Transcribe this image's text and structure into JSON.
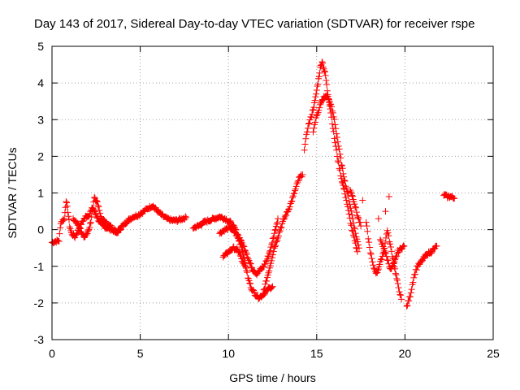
{
  "chart_data": {
    "type": "scatter",
    "title": "Day 143 of 2017, Sidereal Day-to-day VTEC variation (SDTVAR) for receiver rspe",
    "xlabel": "GPS time / hours",
    "ylabel": "SDTVAR / TECUs",
    "xlim": [
      0,
      25
    ],
    "ylim": [
      -3,
      5
    ],
    "xticks": [
      0,
      5,
      10,
      15,
      20,
      25
    ],
    "yticks": [
      -3,
      -2,
      -1,
      0,
      1,
      2,
      3,
      4,
      5
    ],
    "grid": true,
    "marker": "+",
    "series": [
      {
        "name": "SDTVAR",
        "color": "#ff0000",
        "segments": [
          [
            [
              0.0,
              -0.35
            ],
            [
              0.2,
              -0.32
            ],
            [
              0.4,
              -0.3
            ],
            [
              0.5,
              0.2
            ],
            [
              0.7,
              0.3
            ],
            [
              0.8,
              0.8
            ],
            [
              0.9,
              0.5
            ],
            [
              1.0,
              0.1
            ],
            [
              1.1,
              -0.1
            ],
            [
              1.3,
              -0.2
            ],
            [
              1.5,
              0.0
            ],
            [
              1.7,
              0.2
            ],
            [
              1.9,
              0.35
            ],
            [
              2.1,
              0.4
            ],
            [
              2.3,
              0.6
            ],
            [
              2.5,
              0.4
            ],
            [
              2.7,
              0.2
            ],
            [
              2.9,
              0.1
            ],
            [
              3.1,
              0.05
            ],
            [
              3.4,
              0.0
            ],
            [
              3.7,
              -0.05
            ],
            [
              4.0,
              0.1
            ],
            [
              4.3,
              0.25
            ],
            [
              4.6,
              0.35
            ],
            [
              4.9,
              0.4
            ],
            [
              5.2,
              0.5
            ],
            [
              5.5,
              0.6
            ],
            [
              5.7,
              0.65
            ],
            [
              5.9,
              0.55
            ],
            [
              6.2,
              0.4
            ],
            [
              6.5,
              0.3
            ],
            [
              6.8,
              0.25
            ],
            [
              7.1,
              0.25
            ],
            [
              7.4,
              0.3
            ],
            [
              7.6,
              0.33
            ]
          ],
          [
            [
              1.2,
              0.3
            ],
            [
              1.4,
              0.2
            ],
            [
              1.6,
              0.0
            ],
            [
              1.8,
              -0.2
            ],
            [
              2.0,
              -0.1
            ],
            [
              2.2,
              0.2
            ],
            [
              2.4,
              0.9
            ],
            [
              2.6,
              0.7
            ],
            [
              2.8,
              0.3
            ],
            [
              3.0,
              0.2
            ],
            [
              3.3,
              0.1
            ],
            [
              3.6,
              -0.1
            ],
            [
              3.9,
              0.0
            ]
          ],
          [
            [
              8.0,
              0.05
            ],
            [
              8.3,
              0.1
            ],
            [
              8.6,
              0.2
            ],
            [
              8.9,
              0.25
            ],
            [
              9.2,
              0.3
            ],
            [
              9.5,
              0.35
            ],
            [
              9.8,
              0.3
            ],
            [
              10.1,
              0.2
            ],
            [
              10.4,
              0.0
            ],
            [
              10.6,
              -0.2
            ],
            [
              10.8,
              -0.4
            ],
            [
              11.0,
              -0.6
            ],
            [
              11.2,
              -0.9
            ],
            [
              11.4,
              -1.1
            ],
            [
              11.6,
              -1.2
            ],
            [
              11.8,
              -1.1
            ],
            [
              12.0,
              -1.0
            ],
            [
              12.2,
              -0.8
            ],
            [
              12.4,
              -0.5
            ],
            [
              12.6,
              -0.1
            ],
            [
              12.8,
              0.3
            ]
          ],
          [
            [
              9.5,
              -0.1
            ],
            [
              9.8,
              0.0
            ],
            [
              10.1,
              0.05
            ],
            [
              10.4,
              -0.1
            ],
            [
              10.7,
              -0.4
            ],
            [
              10.9,
              -0.8
            ],
            [
              11.1,
              -1.3
            ],
            [
              11.3,
              -1.6
            ],
            [
              11.5,
              -1.75
            ],
            [
              11.7,
              -1.85
            ],
            [
              11.9,
              -1.8
            ],
            [
              12.1,
              -1.7
            ],
            [
              12.3,
              -1.6
            ],
            [
              12.5,
              -1.55
            ]
          ],
          [
            [
              9.7,
              -0.75
            ],
            [
              10.0,
              -0.6
            ],
            [
              10.3,
              -0.5
            ],
            [
              10.6,
              -0.6
            ],
            [
              10.8,
              -0.9
            ],
            [
              11.0,
              -1.05
            ]
          ],
          [
            [
              12.0,
              -1.65
            ],
            [
              12.2,
              -1.3
            ],
            [
              12.4,
              -0.9
            ],
            [
              12.6,
              -0.5
            ],
            [
              12.8,
              -0.2
            ],
            [
              13.0,
              0.1
            ],
            [
              13.2,
              0.35
            ],
            [
              13.4,
              0.55
            ],
            [
              13.6,
              0.8
            ],
            [
              13.8,
              1.1
            ],
            [
              14.0,
              1.4
            ],
            [
              14.2,
              1.5
            ]
          ],
          [
            [
              14.3,
              2.2
            ],
            [
              14.5,
              2.8
            ],
            [
              14.7,
              3.1
            ],
            [
              14.9,
              3.5
            ],
            [
              15.0,
              3.8
            ],
            [
              15.1,
              4.1
            ],
            [
              15.2,
              4.4
            ],
            [
              15.3,
              4.6
            ],
            [
              15.4,
              4.4
            ],
            [
              15.5,
              4.2
            ],
            [
              15.6,
              3.8
            ],
            [
              15.8,
              3.2
            ],
            [
              16.0,
              2.5
            ],
            [
              16.2,
              1.9
            ],
            [
              16.4,
              1.4
            ],
            [
              16.6,
              1.0
            ],
            [
              16.8,
              0.5
            ],
            [
              17.0,
              0.0
            ],
            [
              17.2,
              -0.4
            ],
            [
              17.3,
              -0.6
            ]
          ],
          [
            [
              14.8,
              2.7
            ],
            [
              15.0,
              3.1
            ],
            [
              15.2,
              3.4
            ],
            [
              15.4,
              3.6
            ],
            [
              15.6,
              3.65
            ],
            [
              15.8,
              3.4
            ],
            [
              16.0,
              3.0
            ],
            [
              16.2,
              2.4
            ],
            [
              16.4,
              1.8
            ],
            [
              16.6,
              1.3
            ],
            [
              16.8,
              0.9
            ],
            [
              17.0,
              0.4
            ],
            [
              17.2,
              -0.1
            ],
            [
              17.4,
              -0.5
            ]
          ],
          [
            [
              16.9,
              1.1
            ],
            [
              17.1,
              0.8
            ],
            [
              17.3,
              0.4
            ],
            [
              17.5,
              0.1
            ]
          ],
          [
            [
              17.8,
              0.2
            ],
            [
              18.0,
              -0.5
            ],
            [
              18.2,
              -1.0
            ],
            [
              18.4,
              -1.2
            ],
            [
              18.6,
              -0.9
            ],
            [
              18.8,
              -0.6
            ],
            [
              19.0,
              0.0
            ],
            [
              19.2,
              -0.5
            ],
            [
              19.4,
              -1.0
            ],
            [
              19.6,
              -1.5
            ],
            [
              19.8,
              -1.9
            ]
          ],
          [
            [
              18.6,
              -0.3
            ],
            [
              18.8,
              -0.5
            ],
            [
              19.0,
              -0.8
            ],
            [
              19.2,
              -1.1
            ],
            [
              19.4,
              -0.9
            ],
            [
              19.6,
              -0.6
            ],
            [
              19.8,
              -0.5
            ],
            [
              19.95,
              -0.45
            ]
          ],
          [
            [
              20.1,
              -2.1
            ],
            [
              20.3,
              -1.8
            ],
            [
              20.5,
              -1.3
            ],
            [
              20.7,
              -1.0
            ],
            [
              20.9,
              -0.9
            ],
            [
              21.1,
              -0.75
            ],
            [
              21.3,
              -0.65
            ],
            [
              21.5,
              -0.6
            ],
            [
              21.7,
              -0.5
            ],
            [
              21.8,
              -0.45
            ]
          ],
          [
            [
              22.2,
              0.95
            ],
            [
              22.4,
              0.9
            ],
            [
              22.6,
              0.9
            ],
            [
              22.8,
              0.85
            ]
          ]
        ],
        "points": [
          [
            17.6,
            0.8
          ],
          [
            18.5,
            0.3
          ],
          [
            18.9,
            0.5
          ],
          [
            19.1,
            0.9
          ]
        ]
      }
    ]
  }
}
